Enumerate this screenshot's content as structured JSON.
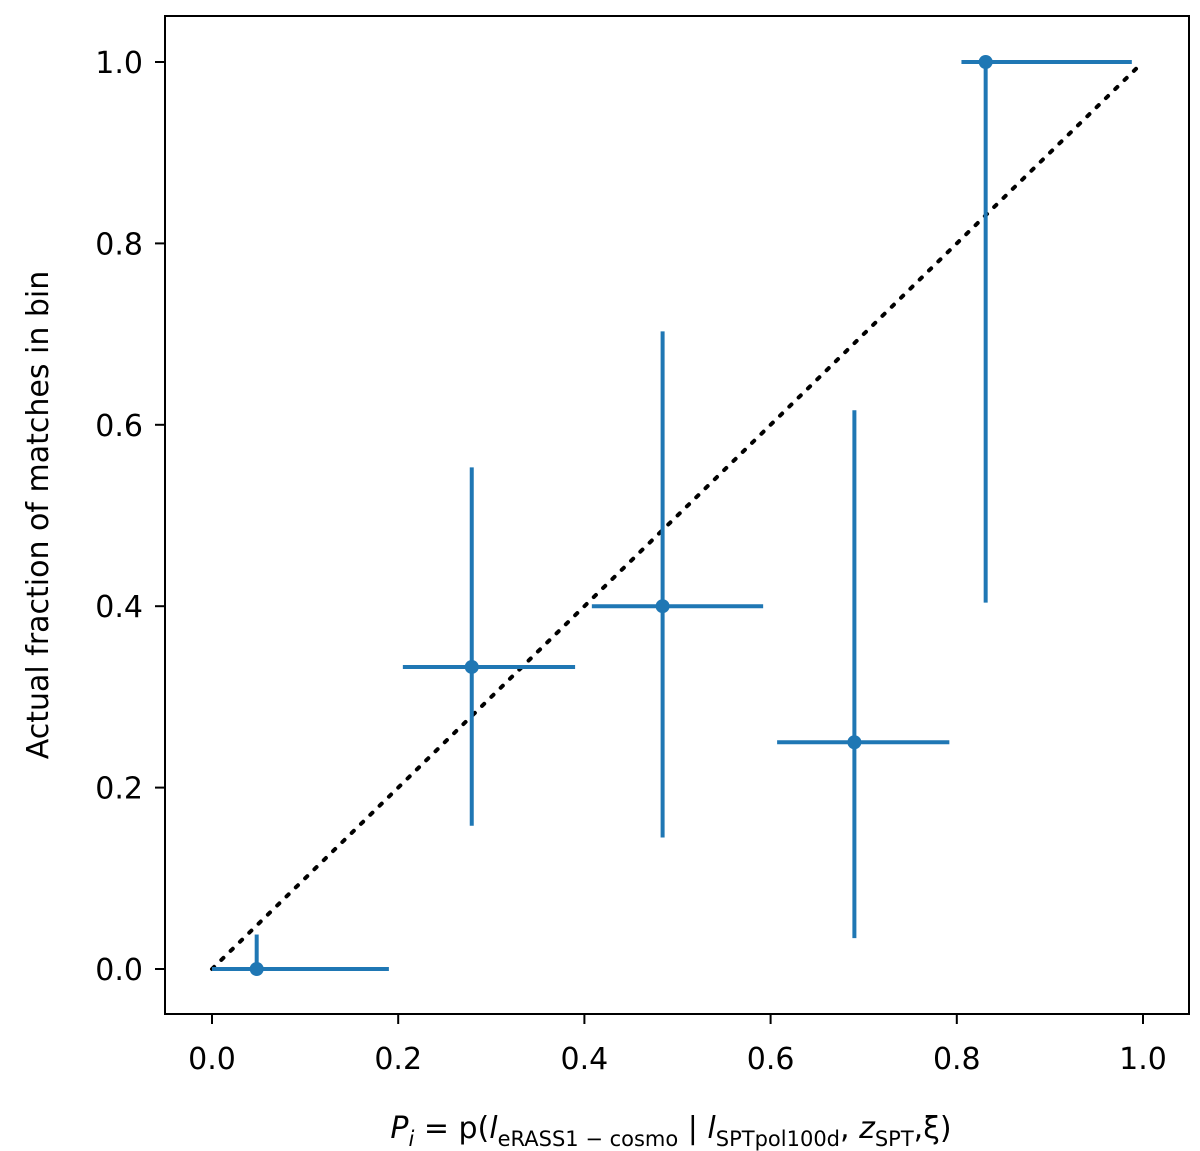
{
  "chart_data": {
    "type": "scatter",
    "title": "",
    "xlabel": {
      "main": "P",
      "main_sub": "i",
      "eq": " = p(",
      "l1": "l",
      "l1_sub": "eRASS1 − cosmo",
      "sep": " | ",
      "l2": "l",
      "l2_sub": "SPTpol100d",
      "comma": ", ",
      "z": "z",
      "z_sub": "SPT",
      "xi": ",ξ)"
    },
    "ylabel": "Actual fraction of matches in bin",
    "xlim": [
      -0.05,
      1.05
    ],
    "ylim": [
      -0.05,
      1.05
    ],
    "xticks": [
      0.0,
      0.2,
      0.4,
      0.6,
      0.8,
      1.0
    ],
    "xtick_labels": [
      "0.0",
      "0.2",
      "0.4",
      "0.6",
      "0.8",
      "1.0"
    ],
    "yticks": [
      0.0,
      0.2,
      0.4,
      0.6,
      0.8,
      1.0
    ],
    "ytick_labels": [
      "0.0",
      "0.2",
      "0.4",
      "0.6",
      "0.8",
      "1.0"
    ],
    "grid": false,
    "series": [
      {
        "style": "errorbar",
        "color": "#1f77b4",
        "points": [
          {
            "x": 0.048,
            "y": 0.0,
            "xlo": 0.0,
            "xhi": 0.19,
            "ylo": 0.0,
            "yhi": 0.038
          },
          {
            "x": 0.279,
            "y": 0.333,
            "xlo": 0.205,
            "xhi": 0.39,
            "ylo": 0.158,
            "yhi": 0.553
          },
          {
            "x": 0.484,
            "y": 0.4,
            "xlo": 0.408,
            "xhi": 0.592,
            "ylo": 0.145,
            "yhi": 0.703
          },
          {
            "x": 0.69,
            "y": 0.25,
            "xlo": 0.607,
            "xhi": 0.792,
            "ylo": 0.034,
            "yhi": 0.616
          },
          {
            "x": 0.831,
            "y": 1.0,
            "xlo": 0.805,
            "xhi": 0.988,
            "ylo": 0.404,
            "yhi": 1.0
          }
        ]
      },
      {
        "style": "dotted-line",
        "color": "#000000",
        "x": [
          0.0,
          1.0
        ],
        "y": [
          0.0,
          1.0
        ]
      }
    ]
  }
}
